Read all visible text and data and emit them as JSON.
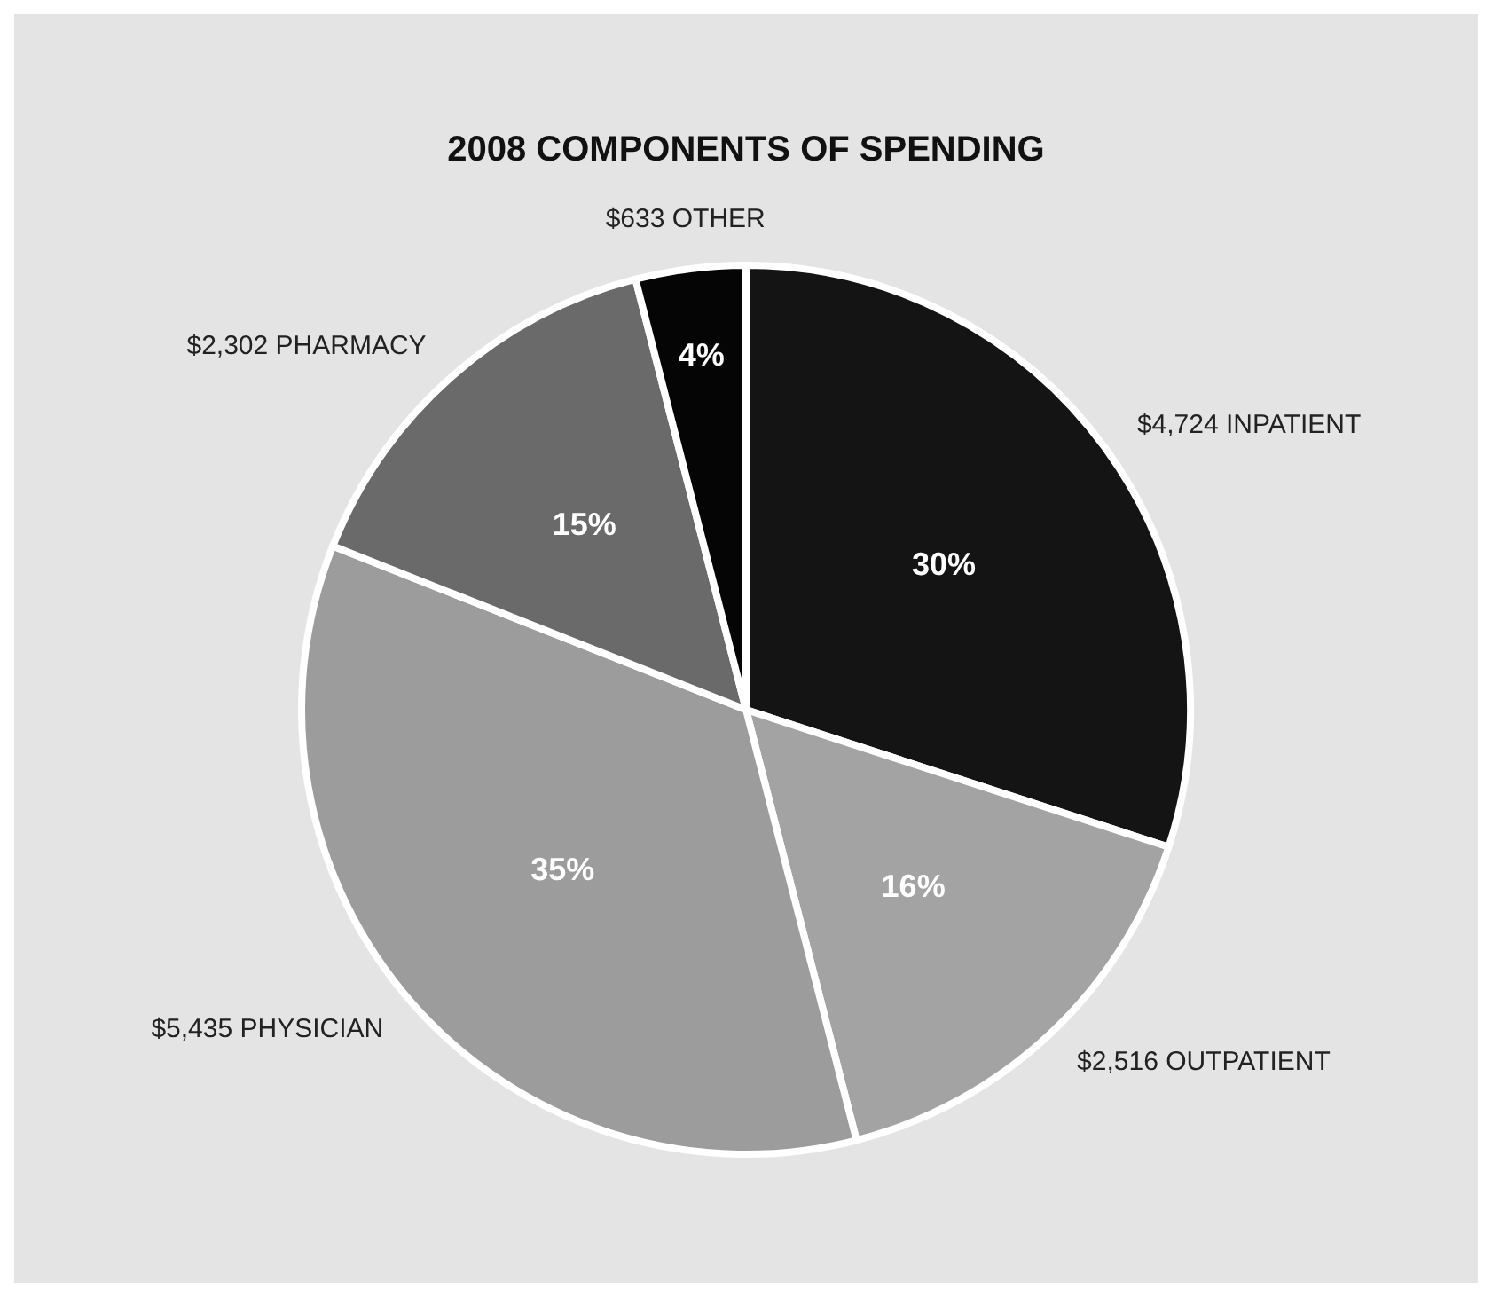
{
  "chart_data": {
    "type": "pie",
    "title": "2008 COMPONENTS OF SPENDING",
    "categories": [
      "$4,724 INPATIENT",
      "$2,516 OUTPATIENT",
      "$5,435 PHYSICIAN",
      "$2,302 PHARMACY",
      "$633 OTHER"
    ],
    "values": [
      30,
      16,
      35,
      15,
      4
    ],
    "value_labels": [
      "30%",
      "16%",
      "35%",
      "15%",
      "4%"
    ],
    "colors": [
      "#141414",
      "#a3a3a3",
      "#9c9c9c",
      "#6a6a6a",
      "#050505"
    ],
    "legend": false
  }
}
